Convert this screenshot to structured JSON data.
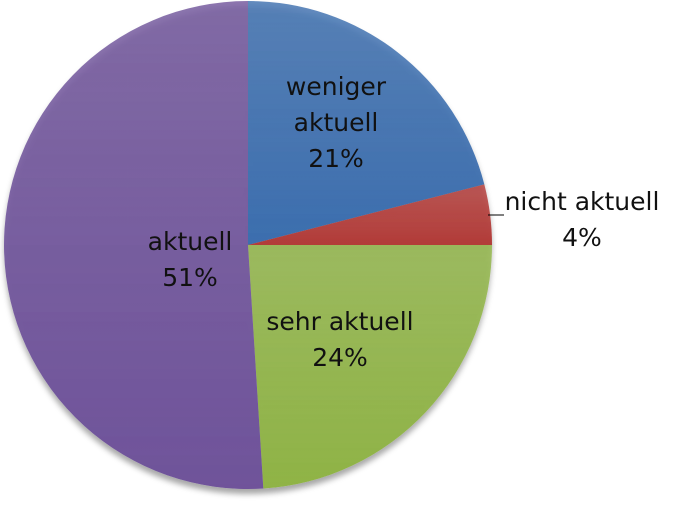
{
  "chart_data": {
    "type": "pie",
    "title": "",
    "start_angle": "12 o'clock",
    "direction": "clockwise",
    "slices": [
      {
        "label": "weniger aktuell",
        "label_lines": [
          "weniger",
          "aktuell"
        ],
        "value": 21,
        "value_label": "21%",
        "color": "#3c6eae"
      },
      {
        "label": "nicht aktuell",
        "label_lines": [
          "nicht aktuell"
        ],
        "value": 4,
        "value_label": "4%",
        "color": "#b23c39"
      },
      {
        "label": "sehr aktuell",
        "label_lines": [
          "sehr aktuell"
        ],
        "value": 24,
        "value_label": "24%",
        "color": "#8fb346"
      },
      {
        "label": "aktuell",
        "label_lines": [
          "aktuell"
        ],
        "value": 51,
        "value_label": "51%",
        "color": "#6f539a"
      }
    ],
    "legend": "none",
    "data_labels": "category and percent"
  }
}
